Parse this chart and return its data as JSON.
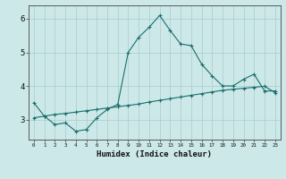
{
  "xlabel": "Humidex (Indice chaleur)",
  "ylabel": "",
  "bg_color": "#cce8e8",
  "grid_color": "#aacccc",
  "line_color": "#1a6e6e",
  "x_data": [
    0,
    1,
    2,
    3,
    4,
    5,
    6,
    7,
    8,
    9,
    10,
    11,
    12,
    13,
    14,
    15,
    16,
    17,
    18,
    19,
    20,
    21,
    22,
    23
  ],
  "y_main": [
    3.5,
    3.1,
    2.85,
    2.9,
    2.65,
    2.7,
    3.05,
    3.3,
    3.45,
    5.0,
    5.45,
    5.75,
    6.1,
    5.65,
    5.25,
    5.2,
    4.65,
    4.3,
    4.0,
    4.0,
    4.2,
    4.35,
    3.85,
    3.85
  ],
  "y_trend": [
    3.05,
    3.1,
    3.15,
    3.18,
    3.22,
    3.26,
    3.3,
    3.34,
    3.38,
    3.42,
    3.46,
    3.52,
    3.57,
    3.62,
    3.67,
    3.72,
    3.77,
    3.82,
    3.87,
    3.9,
    3.93,
    3.96,
    3.99,
    3.8
  ],
  "ylim": [
    2.4,
    6.4
  ],
  "yticks": [
    3,
    4,
    5,
    6
  ],
  "xlim": [
    -0.5,
    23.5
  ]
}
